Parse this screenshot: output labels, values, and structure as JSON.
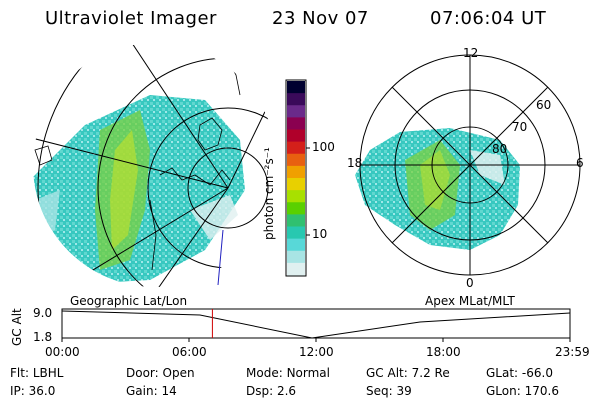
{
  "header": {
    "title": "Ultraviolet Imager",
    "date": "23 Nov 07",
    "time": "07:06:04 UT"
  },
  "colorbar": {
    "unit_label": "photon cm⁻²s⁻¹",
    "ticks": [
      "100",
      "10"
    ],
    "colors": [
      "#000030",
      "#3a0a5a",
      "#6a2a8a",
      "#8a0050",
      "#b0002a",
      "#d4201a",
      "#e86010",
      "#f0a000",
      "#e8d000",
      "#a8e000",
      "#5ad000",
      "#30c070",
      "#28c8b0",
      "#58d8d8",
      "#a8e4e4",
      "#e0f0f0"
    ]
  },
  "polar": {
    "mlt_labels": {
      "top": "12",
      "left": "18",
      "right": "6",
      "bottom": "0"
    },
    "lat_labels": [
      "60",
      "70",
      "80"
    ]
  },
  "timeline": {
    "left_title": "Geographic Lat/Lon",
    "right_title": "Apex MLat/MLT",
    "axis_label": "GC Alt",
    "y_ticks": [
      "9.0",
      "1.8"
    ],
    "x_ticks": [
      "00:00",
      "06:00",
      "12:00",
      "18:00",
      "23:59"
    ],
    "current_time_fraction": 0.296,
    "colors": {
      "current_marker": "#d00000"
    }
  },
  "info": {
    "row1": [
      {
        "label": "Flt:",
        "value": "LBHL"
      },
      {
        "label": "Door:",
        "value": "Open"
      },
      {
        "label": "Mode:",
        "value": "Normal"
      },
      {
        "label": "GC Alt:",
        "value": "7.2 Re"
      },
      {
        "label": "GLat:",
        "value": "-66.0"
      }
    ],
    "row2": [
      {
        "label": "IP:",
        "value": "36.0"
      },
      {
        "label": "Gain:",
        "value": "14"
      },
      {
        "label": "Dsp:",
        "value": "2.6"
      },
      {
        "label": "Seq:",
        "value": "39"
      },
      {
        "label": "GLon:",
        "value": "170.6"
      }
    ]
  }
}
